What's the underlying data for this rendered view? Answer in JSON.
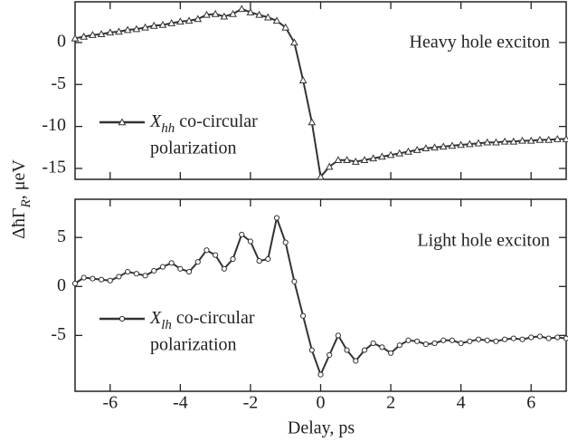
{
  "x_label": "Delay, ps",
  "y_label": {
    "main": "ΔħΓ",
    "sub": "R",
    "rest": ", μeV"
  },
  "chart_data": [
    {
      "type": "line",
      "annotation": "Heavy hole exciton",
      "marker": "triangle",
      "color": "#333333",
      "legend": {
        "symbol": "X",
        "sub": "hh",
        "text": " co-circular",
        "line2": "polarization"
      },
      "xlim": [
        -7,
        7
      ],
      "xticks": [
        -6,
        -4,
        -2,
        0,
        2,
        4,
        6
      ],
      "ylim": [
        -16.3,
        4.85
      ],
      "yticks": [
        0,
        -5,
        -10,
        -15
      ],
      "x": [
        -7,
        -6.75,
        -6.5,
        -6.25,
        -6,
        -5.75,
        -5.5,
        -5.25,
        -5,
        -4.75,
        -4.5,
        -4.25,
        -4,
        -3.75,
        -3.5,
        -3.25,
        -3,
        -2.75,
        -2.5,
        -2.25,
        -2,
        -1.75,
        -1.5,
        -1.25,
        -1,
        -0.75,
        -0.5,
        -0.25,
        0,
        0.25,
        0.5,
        0.75,
        1,
        1.25,
        1.5,
        1.75,
        2,
        2.25,
        2.5,
        2.75,
        3,
        3.25,
        3.5,
        3.75,
        4,
        4.25,
        4.5,
        4.75,
        5,
        5.25,
        5.5,
        5.75,
        6,
        6.25,
        6.5,
        6.75,
        7
      ],
      "values": [
        0.5,
        0.7,
        0.9,
        1.0,
        1.2,
        1.3,
        1.5,
        1.6,
        1.8,
        2.0,
        2.1,
        2.3,
        2.5,
        2.6,
        2.8,
        3.3,
        3.4,
        3.1,
        3.4,
        4.0,
        3.6,
        3.3,
        3.0,
        2.6,
        1.8,
        0.0,
        -4.5,
        -9.5,
        -16.0,
        -14.8,
        -14.0,
        -14.0,
        -14.2,
        -14.0,
        -13.8,
        -13.6,
        -13.4,
        -13.2,
        -13.0,
        -12.8,
        -12.6,
        -12.5,
        -12.4,
        -12.3,
        -12.2,
        -12.1,
        -12.0,
        -11.9,
        -11.9,
        -11.8,
        -11.8,
        -11.7,
        -11.7,
        -11.6,
        -11.6,
        -11.5,
        -11.5
      ]
    },
    {
      "type": "line",
      "annotation": "Light hole exciton",
      "marker": "circle",
      "color": "#333333",
      "legend": {
        "symbol": "X",
        "sub": "lh",
        "text": " co-circular",
        "line2": "polarization"
      },
      "xlim": [
        -7,
        7
      ],
      "xticks": [
        -6,
        -4,
        -2,
        0,
        2,
        4,
        6
      ],
      "ylim": [
        -10.7,
        8.9
      ],
      "yticks": [
        5,
        0,
        -5
      ],
      "x": [
        -7,
        -6.75,
        -6.5,
        -6.25,
        -6,
        -5.75,
        -5.5,
        -5.25,
        -5,
        -4.75,
        -4.5,
        -4.25,
        -4,
        -3.75,
        -3.5,
        -3.25,
        -3,
        -2.75,
        -2.5,
        -2.25,
        -2,
        -1.75,
        -1.5,
        -1.25,
        -1,
        -0.75,
        -0.5,
        -0.25,
        0,
        0.25,
        0.5,
        0.75,
        1,
        1.25,
        1.5,
        1.75,
        2,
        2.25,
        2.5,
        2.75,
        3,
        3.25,
        3.5,
        3.75,
        4,
        4.25,
        4.5,
        4.75,
        5,
        5.25,
        5.5,
        5.75,
        6,
        6.25,
        6.5,
        6.75,
        7
      ],
      "values": [
        0.3,
        0.9,
        0.8,
        0.7,
        0.6,
        1.0,
        1.5,
        1.3,
        1.1,
        1.6,
        2.0,
        2.4,
        1.8,
        1.5,
        2.5,
        3.7,
        3.2,
        1.8,
        2.8,
        5.3,
        4.6,
        2.6,
        2.8,
        7.0,
        4.5,
        0.5,
        -3,
        -6.5,
        -9.0,
        -7.0,
        -5.0,
        -6.5,
        -7.6,
        -6.5,
        -5.8,
        -6.2,
        -6.8,
        -6.0,
        -5.5,
        -5.6,
        -5.9,
        -5.8,
        -5.5,
        -5.5,
        -5.8,
        -5.6,
        -5.4,
        -5.5,
        -5.6,
        -5.4,
        -5.3,
        -5.4,
        -5.2,
        -5.1,
        -5.3,
        -5.2,
        -5.3
      ]
    }
  ]
}
